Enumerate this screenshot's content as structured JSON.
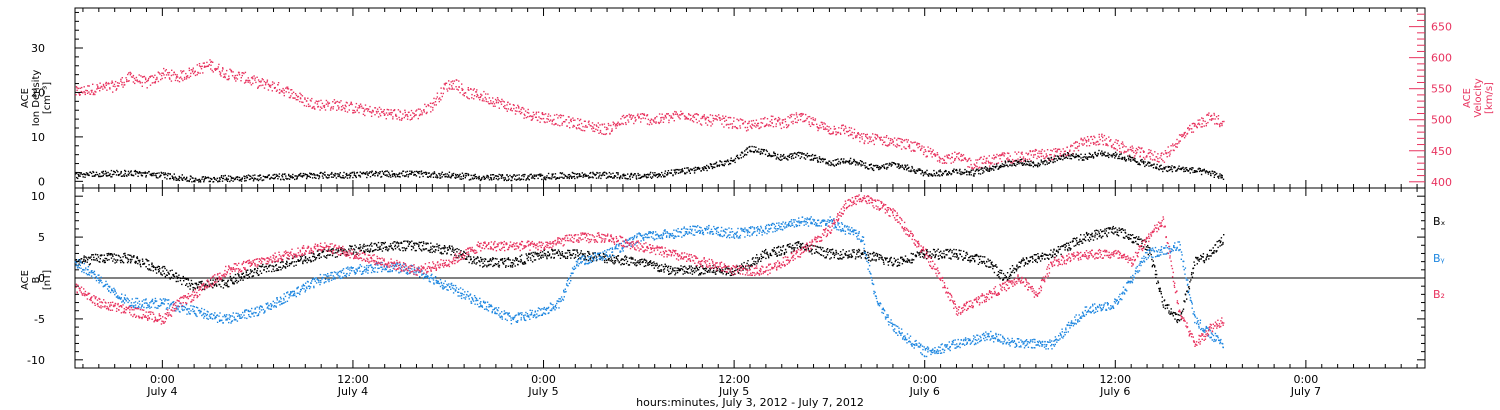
{
  "colors": {
    "black": "#000000",
    "pink": "#e8335f",
    "blue": "#1e87e0",
    "frame": "#000000"
  },
  "xaxis": {
    "label": "hours:minutes, July  3, 2012 - July  7, 2012",
    "range_hours_from_jul3_0000": [
      18.5,
      103.5
    ],
    "ticks": [
      {
        "t": 24,
        "time": "0:00",
        "date": "July 4"
      },
      {
        "t": 36,
        "time": "12:00",
        "date": "July 4"
      },
      {
        "t": 48,
        "time": "0:00",
        "date": "July 5"
      },
      {
        "t": 60,
        "time": "12:00",
        "date": "July 5"
      },
      {
        "t": 72,
        "time": "0:00",
        "date": "July 6"
      },
      {
        "t": 84,
        "time": "12:00",
        "date": "July 6"
      },
      {
        "t": 96,
        "time": "0:00",
        "date": "July 7"
      }
    ]
  },
  "chart_data": [
    {
      "type": "scatter",
      "panel": "top",
      "ylabel_left": [
        "ACE",
        "Ion Density",
        "[cm⁻³]"
      ],
      "ylabel_right": [
        "ACE",
        "Velocity",
        "[km/s]"
      ],
      "ylim_left": [
        -1.5,
        39
      ],
      "ylim_right": [
        390,
        680
      ],
      "yticks_left": [
        "0",
        "10",
        "20",
        "30"
      ],
      "yticks_left_values": [
        0,
        10,
        20,
        30
      ],
      "yticks_right": [
        "400",
        "450",
        "500",
        "550",
        "600",
        "650"
      ],
      "yticks_right_values": [
        400,
        450,
        500,
        550,
        600,
        650
      ],
      "series": [
        {
          "color": "pink",
          "axis": "right",
          "points": [
            [
              18.5,
              545
            ],
            [
              19.5,
              550
            ],
            [
              21,
              555
            ],
            [
              22,
              570
            ],
            [
              23,
              560
            ],
            [
              24,
              575
            ],
            [
              25,
              570
            ],
            [
              26,
              580
            ],
            [
              27,
              590
            ],
            [
              28,
              575
            ],
            [
              29,
              570
            ],
            [
              30,
              560
            ],
            [
              31,
              555
            ],
            [
              32,
              545
            ],
            [
              33,
              530
            ],
            [
              34,
              525
            ],
            [
              35,
              525
            ],
            [
              36,
              520
            ],
            [
              37,
              515
            ],
            [
              38,
              512
            ],
            [
              39,
              508
            ],
            [
              40,
              510
            ],
            [
              41,
              525
            ],
            [
              41.8,
              555
            ],
            [
              42.5,
              560
            ],
            [
              43,
              545
            ],
            [
              44,
              540
            ],
            [
              45,
              530
            ],
            [
              46,
              520
            ],
            [
              47,
              510
            ],
            [
              48,
              505
            ],
            [
              49,
              500
            ],
            [
              50,
              495
            ],
            [
              51,
              490
            ],
            [
              52,
              485
            ],
            [
              53,
              500
            ],
            [
              54,
              505
            ],
            [
              55,
              500
            ],
            [
              56,
              505
            ],
            [
              57,
              510
            ],
            [
              58,
              500
            ],
            [
              59,
              500
            ],
            [
              60,
              495
            ],
            [
              61,
              490
            ],
            [
              62,
              500
            ],
            [
              63,
              495
            ],
            [
              64,
              505
            ],
            [
              65,
              495
            ],
            [
              66,
              485
            ],
            [
              67,
              485
            ],
            [
              68,
              470
            ],
            [
              69,
              470
            ],
            [
              70,
              465
            ],
            [
              71,
              460
            ],
            [
              72,
              450
            ],
            [
              73,
              440
            ],
            [
              74,
              440
            ],
            [
              75,
              430
            ],
            [
              76,
              435
            ],
            [
              77,
              440
            ],
            [
              78,
              440
            ],
            [
              79,
              445
            ],
            [
              80,
              445
            ],
            [
              81,
              450
            ],
            [
              82,
              465
            ],
            [
              83,
              470
            ],
            [
              84,
              460
            ],
            [
              85,
              450
            ],
            [
              86,
              445
            ],
            [
              87,
              440
            ],
            [
              88,
              470
            ],
            [
              89,
              490
            ],
            [
              90,
              505
            ],
            [
              90.8,
              495
            ]
          ]
        },
        {
          "color": "black",
          "axis": "left",
          "points": [
            [
              18.5,
              1.5
            ],
            [
              20,
              1.8
            ],
            [
              22,
              2
            ],
            [
              24,
              1.5
            ],
            [
              26,
              0.5
            ],
            [
              28,
              0.8
            ],
            [
              30,
              1
            ],
            [
              32,
              1.2
            ],
            [
              34,
              1.5
            ],
            [
              36,
              1.6
            ],
            [
              38,
              1.8
            ],
            [
              40,
              1.8
            ],
            [
              42,
              1.5
            ],
            [
              44,
              1
            ],
            [
              46,
              1
            ],
            [
              48,
              1.2
            ],
            [
              50,
              1.5
            ],
            [
              52,
              1.5
            ],
            [
              54,
              1.2
            ],
            [
              56,
              2
            ],
            [
              58,
              3
            ],
            [
              60,
              5
            ],
            [
              61,
              7.5
            ],
            [
              62,
              6.5
            ],
            [
              63,
              5.5
            ],
            [
              64,
              6
            ],
            [
              65,
              5.5
            ],
            [
              66,
              4
            ],
            [
              67,
              5
            ],
            [
              68,
              4
            ],
            [
              69,
              3
            ],
            [
              70,
              4
            ],
            [
              71,
              3
            ],
            [
              72,
              2
            ],
            [
              73,
              2
            ],
            [
              74,
              2.5
            ],
            [
              75,
              2
            ],
            [
              76,
              3
            ],
            [
              77,
              4
            ],
            [
              78,
              4.5
            ],
            [
              79,
              4
            ],
            [
              80,
              5
            ],
            [
              81,
              6
            ],
            [
              82,
              5.5
            ],
            [
              83,
              6.5
            ],
            [
              84,
              6
            ],
            [
              85,
              5
            ],
            [
              86,
              4
            ],
            [
              87,
              3
            ],
            [
              88,
              3
            ],
            [
              89,
              2.5
            ],
            [
              90,
              2
            ],
            [
              90.8,
              1
            ]
          ]
        }
      ]
    },
    {
      "type": "scatter",
      "panel": "bottom",
      "ylabel_left": [
        "ACE",
        "B",
        "[nT]"
      ],
      "ylim": [
        -11,
        11
      ],
      "yticks": [
        "-10",
        "-5",
        "0",
        "5",
        "10"
      ],
      "yticks_values": [
        -10,
        -5,
        0,
        5,
        10
      ],
      "legend": [
        "Bₓ",
        "Bᵧ",
        "B₂"
      ],
      "legend_placement": "right",
      "series": [
        {
          "name": "Bₓ",
          "color": "black",
          "points": [
            [
              18.5,
              2
            ],
            [
              20,
              2.5
            ],
            [
              22,
              2.5
            ],
            [
              24,
              1
            ],
            [
              26,
              -1
            ],
            [
              28,
              -0.5
            ],
            [
              30,
              1
            ],
            [
              32,
              2
            ],
            [
              34,
              3
            ],
            [
              36,
              3.5
            ],
            [
              38,
              4
            ],
            [
              40,
              4
            ],
            [
              42,
              3.5
            ],
            [
              44,
              2
            ],
            [
              46,
              2
            ],
            [
              48,
              3
            ],
            [
              50,
              3
            ],
            [
              52,
              2.5
            ],
            [
              54,
              2
            ],
            [
              56,
              1
            ],
            [
              58,
              1
            ],
            [
              60,
              1
            ],
            [
              62,
              3
            ],
            [
              64,
              4
            ],
            [
              66,
              3
            ],
            [
              68,
              3
            ],
            [
              70,
              2
            ],
            [
              72,
              3
            ],
            [
              74,
              3
            ],
            [
              76,
              2
            ],
            [
              77,
              0
            ],
            [
              78,
              2
            ],
            [
              80,
              3
            ],
            [
              82,
              5
            ],
            [
              84,
              6
            ],
            [
              86,
              4
            ],
            [
              87,
              -3
            ],
            [
              88,
              -5
            ],
            [
              89,
              2
            ],
            [
              90,
              3
            ],
            [
              90.8,
              5
            ]
          ]
        },
        {
          "name": "Bᵧ",
          "color": "blue",
          "points": [
            [
              18.5,
              2
            ],
            [
              20,
              0
            ],
            [
              21,
              -2
            ],
            [
              22,
              -3
            ],
            [
              24,
              -3
            ],
            [
              26,
              -4
            ],
            [
              28,
              -5
            ],
            [
              30,
              -4
            ],
            [
              32,
              -2
            ],
            [
              34,
              0
            ],
            [
              36,
              1
            ],
            [
              38,
              1.5
            ],
            [
              40,
              1
            ],
            [
              42,
              -1
            ],
            [
              44,
              -3
            ],
            [
              46,
              -5
            ],
            [
              48,
              -4
            ],
            [
              49,
              -3
            ],
            [
              50,
              2
            ],
            [
              52,
              3
            ],
            [
              54,
              5
            ],
            [
              56,
              5.5
            ],
            [
              58,
              6
            ],
            [
              60,
              5.5
            ],
            [
              62,
              6
            ],
            [
              64,
              7
            ],
            [
              66,
              7
            ],
            [
              68,
              5
            ],
            [
              69,
              -3
            ],
            [
              70,
              -6
            ],
            [
              72,
              -9
            ],
            [
              74,
              -8
            ],
            [
              76,
              -7
            ],
            [
              78,
              -8
            ],
            [
              80,
              -8
            ],
            [
              82,
              -4
            ],
            [
              84,
              -3
            ],
            [
              86,
              3
            ],
            [
              88,
              4
            ],
            [
              89,
              -5
            ],
            [
              90,
              -7
            ],
            [
              90.8,
              -8
            ]
          ]
        },
        {
          "name": "B₂",
          "color": "pink",
          "points": [
            [
              18.5,
              -1
            ],
            [
              20,
              -3
            ],
            [
              22,
              -4
            ],
            [
              24,
              -5
            ],
            [
              25,
              -3
            ],
            [
              26,
              -2
            ],
            [
              28,
              1
            ],
            [
              30,
              2
            ],
            [
              32,
              3
            ],
            [
              34,
              4
            ],
            [
              36,
              3
            ],
            [
              38,
              2
            ],
            [
              40,
              1
            ],
            [
              42,
              2
            ],
            [
              44,
              4
            ],
            [
              46,
              4
            ],
            [
              48,
              4
            ],
            [
              50,
              5
            ],
            [
              52,
              5
            ],
            [
              54,
              4
            ],
            [
              56,
              3
            ],
            [
              58,
              2
            ],
            [
              60,
              1
            ],
            [
              62,
              1
            ],
            [
              64,
              3
            ],
            [
              66,
              6
            ],
            [
              67,
              9
            ],
            [
              68,
              10
            ],
            [
              70,
              8
            ],
            [
              72,
              3
            ],
            [
              73,
              0
            ],
            [
              74,
              -4
            ],
            [
              76,
              -2
            ],
            [
              78,
              0
            ],
            [
              79,
              -2
            ],
            [
              80,
              2
            ],
            [
              82,
              3
            ],
            [
              84,
              3
            ],
            [
              85,
              2
            ],
            [
              86,
              5
            ],
            [
              87,
              7
            ],
            [
              88,
              -4
            ],
            [
              89,
              -8
            ],
            [
              90,
              -6
            ],
            [
              90.8,
              -5
            ]
          ]
        }
      ]
    }
  ]
}
